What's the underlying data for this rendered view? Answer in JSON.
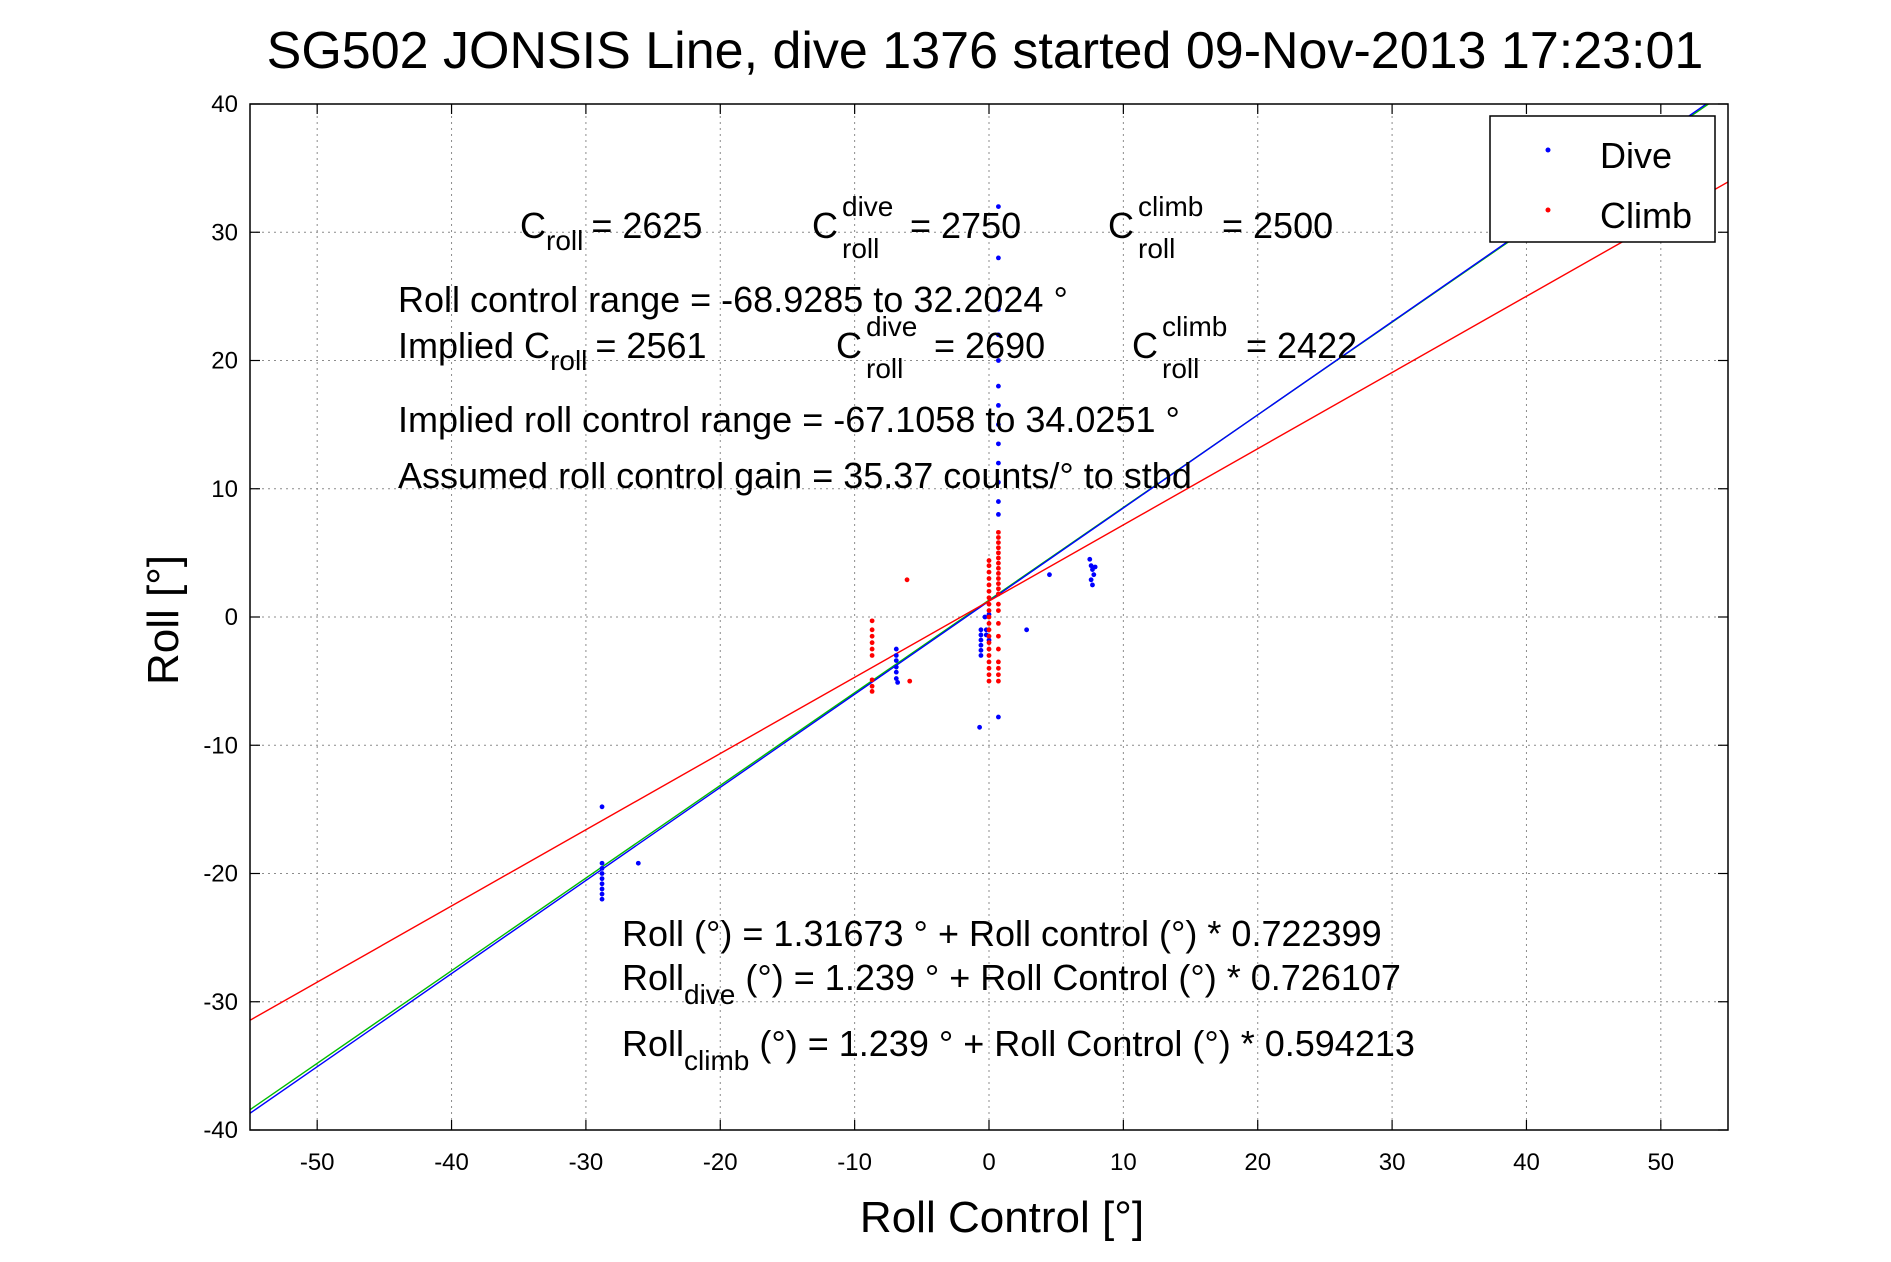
{
  "chart_data": {
    "type": "scatter",
    "title": "SG502 JONSIS Line, dive 1376 started 09-Nov-2013 17:23:01",
    "xlabel": "Roll Control [°]",
    "ylabel": "Roll [°]",
    "xlim": [
      -55,
      55
    ],
    "ylim": [
      -40,
      40
    ],
    "xticks": [
      -50,
      -40,
      -30,
      -20,
      -10,
      0,
      10,
      20,
      30,
      40,
      50
    ],
    "yticks": [
      -40,
      -30,
      -20,
      -10,
      0,
      10,
      20,
      30,
      40
    ],
    "grid": true,
    "legend": {
      "placement": "top-right",
      "entries": [
        "Dive",
        "Climb"
      ]
    },
    "colors": {
      "dive": "#0000ff",
      "climb": "#ff0000",
      "fit": "#00bb00",
      "axes": "#000000",
      "grid": "#8c8c8c"
    },
    "series": [
      {
        "name": "Dive",
        "color": "#0000ff",
        "points": [
          [
            -28.8,
            -14.8
          ],
          [
            -28.8,
            -19.2
          ],
          [
            -28.8,
            -19.6
          ],
          [
            -28.8,
            -20.0
          ],
          [
            -28.8,
            -20.4
          ],
          [
            -28.8,
            -20.8
          ],
          [
            -28.8,
            -21.2
          ],
          [
            -28.8,
            -21.6
          ],
          [
            -28.8,
            -22.0
          ],
          [
            -26.1,
            -19.2
          ],
          [
            -6.9,
            -2.5
          ],
          [
            -6.9,
            -3.0
          ],
          [
            -6.9,
            -3.4
          ],
          [
            -6.9,
            -3.9
          ],
          [
            -6.9,
            -4.3
          ],
          [
            -6.9,
            -4.8
          ],
          [
            -6.8,
            -5.1
          ],
          [
            -0.7,
            -8.6
          ],
          [
            -0.6,
            -1.0
          ],
          [
            -0.6,
            -1.4
          ],
          [
            -0.6,
            -1.8
          ],
          [
            -0.6,
            -2.2
          ],
          [
            -0.6,
            -2.6
          ],
          [
            -0.6,
            -3.0
          ],
          [
            -0.2,
            -1.0
          ],
          [
            -0.2,
            -1.4
          ],
          [
            -0.3,
            0.0
          ],
          [
            0.0,
            0.2
          ],
          [
            0.0,
            -1.8
          ],
          [
            0.7,
            32.0
          ],
          [
            0.7,
            28.0
          ],
          [
            0.7,
            24.0
          ],
          [
            0.7,
            22.0
          ],
          [
            0.7,
            20.0
          ],
          [
            0.7,
            18.0
          ],
          [
            0.7,
            16.5
          ],
          [
            0.7,
            15.0
          ],
          [
            0.7,
            13.5
          ],
          [
            0.7,
            12.0
          ],
          [
            0.7,
            10.5
          ],
          [
            0.7,
            9.0
          ],
          [
            0.7,
            8.0
          ],
          [
            0.7,
            -7.8
          ],
          [
            2.8,
            -1.0
          ],
          [
            4.5,
            3.3
          ],
          [
            7.5,
            4.5
          ],
          [
            7.6,
            4.0
          ],
          [
            7.7,
            3.7
          ],
          [
            7.8,
            3.3
          ],
          [
            7.6,
            2.9
          ],
          [
            7.7,
            2.5
          ],
          [
            7.9,
            3.9
          ]
        ]
      },
      {
        "name": "Climb",
        "color": "#ff0000",
        "points": [
          [
            -8.7,
            -0.3
          ],
          [
            -8.7,
            -1.0
          ],
          [
            -8.7,
            -1.5
          ],
          [
            -8.7,
            -2.0
          ],
          [
            -8.7,
            -2.5
          ],
          [
            -8.7,
            -3.0
          ],
          [
            -8.7,
            -4.9
          ],
          [
            -8.7,
            -5.4
          ],
          [
            -8.7,
            -5.8
          ],
          [
            -6.1,
            2.9
          ],
          [
            -5.9,
            -5.0
          ],
          [
            0.0,
            0.0
          ],
          [
            0.0,
            -0.5
          ],
          [
            0.0,
            -1.0
          ],
          [
            0.0,
            -1.5
          ],
          [
            0.0,
            -2.0
          ],
          [
            0.0,
            -2.5
          ],
          [
            0.0,
            -3.0
          ],
          [
            0.0,
            -3.5
          ],
          [
            0.0,
            -4.0
          ],
          [
            0.0,
            -4.5
          ],
          [
            0.0,
            -5.0
          ],
          [
            0.0,
            0.5
          ],
          [
            0.0,
            1.0
          ],
          [
            0.0,
            1.5
          ],
          [
            0.0,
            2.0
          ],
          [
            0.0,
            2.5
          ],
          [
            0.0,
            3.0
          ],
          [
            0.0,
            3.5
          ],
          [
            0.0,
            4.0
          ],
          [
            0.0,
            4.4
          ],
          [
            0.7,
            6.6
          ],
          [
            0.7,
            6.2
          ],
          [
            0.7,
            5.8
          ],
          [
            0.7,
            5.4
          ],
          [
            0.7,
            5.0
          ],
          [
            0.7,
            4.6
          ],
          [
            0.7,
            4.2
          ],
          [
            0.7,
            3.8
          ],
          [
            0.7,
            3.4
          ],
          [
            0.7,
            3.0
          ],
          [
            0.7,
            2.6
          ],
          [
            0.7,
            2.2
          ],
          [
            0.7,
            1.8
          ],
          [
            0.7,
            1.0
          ],
          [
            0.7,
            0.5
          ],
          [
            0.7,
            -0.5
          ],
          [
            0.7,
            -1.5
          ],
          [
            0.7,
            -2.5
          ],
          [
            0.7,
            -3.5
          ],
          [
            0.7,
            -4.0
          ],
          [
            0.7,
            -4.5
          ],
          [
            0.7,
            -5.0
          ]
        ]
      }
    ],
    "fit_lines": [
      {
        "id": "fit-all",
        "color": "#00bb00",
        "intercept": 1.31673,
        "slope": 0.722399
      },
      {
        "id": "fit-dive",
        "color": "#0000ff",
        "intercept": 1.239,
        "slope": 0.726107
      },
      {
        "id": "fit-climb",
        "color": "#ff0000",
        "intercept": 1.239,
        "slope": 0.594213
      }
    ],
    "annotations": {
      "c_roll_prefix": "C",
      "c_roll_sub": "roll",
      "c_roll_value": "= 2625",
      "c_dive_prefix": "C",
      "c_dive_sup": "dive",
      "c_dive_sub": "roll",
      "c_dive_value": "= 2750",
      "c_climb_prefix": "C",
      "c_climb_sup": "climb",
      "c_climb_sub": "roll",
      "c_climb_value": "= 2500",
      "range_line": "Roll control range = -68.9285 to 32.2024 °",
      "implied_prefix": "Implied C",
      "implied_sub": "roll",
      "implied_value": "= 2561",
      "implied_dive_prefix": "C",
      "implied_dive_sup": "dive",
      "implied_dive_sub": "roll",
      "implied_dive_value": "= 2690",
      "implied_climb_prefix": "C",
      "implied_climb_sup": "climb",
      "implied_climb_sub": "roll",
      "implied_climb_value": "= 2422",
      "implied_range_line": "Implied roll control range = -67.1058 to 34.0251 °",
      "gain_line": "Assumed roll control gain = 35.37 counts/° to stbd",
      "eq1": "Roll (°) = 1.31673 ° + Roll control (°) * 0.722399",
      "eq2_prefix": "Roll",
      "eq2_sub": "dive",
      "eq2_rest": " (°) = 1.239 ° + Roll Control (°) * 0.726107",
      "eq3_prefix": "Roll",
      "eq3_sub": "climb",
      "eq3_rest": " (°) = 1.239 ° + Roll Control (°) * 0.594213"
    }
  }
}
